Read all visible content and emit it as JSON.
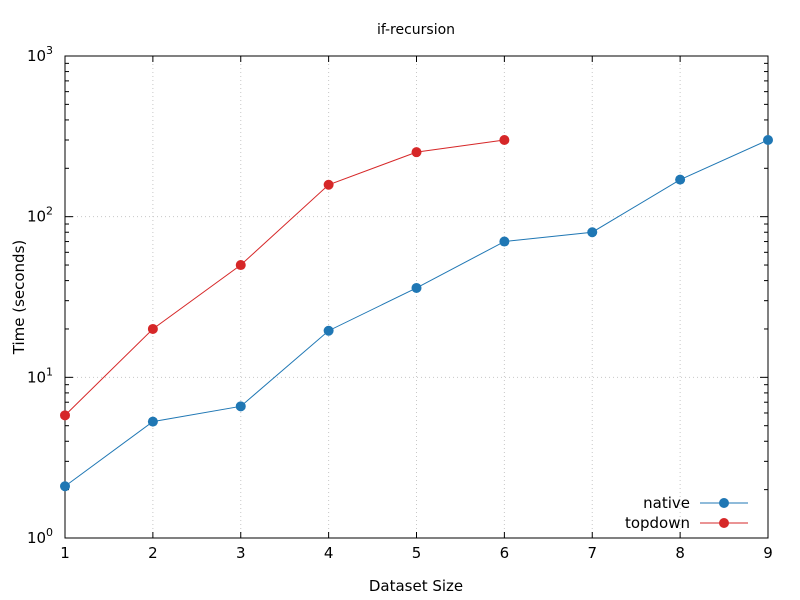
{
  "chart_data": {
    "type": "line",
    "title": "if-recursion",
    "xlabel": "Dataset Size",
    "ylabel": "Time (seconds)",
    "xlim": [
      1,
      9
    ],
    "ylim": [
      1,
      1000
    ],
    "yscale": "log",
    "x_ticks": [
      "1",
      "2",
      "3",
      "4",
      "5",
      "6",
      "7",
      "8",
      "9"
    ],
    "y_ticks": [
      {
        "base": "10",
        "exp": "0",
        "value": 1
      },
      {
        "base": "10",
        "exp": "1",
        "value": 10
      },
      {
        "base": "10",
        "exp": "2",
        "value": 100
      },
      {
        "base": "10",
        "exp": "3",
        "value": 1000
      }
    ],
    "grid": true,
    "legend": "bottom-right",
    "series": [
      {
        "name": "native",
        "color": "#1f77b4",
        "x": [
          1,
          2,
          3,
          4,
          5,
          6,
          7,
          8,
          9
        ],
        "y": [
          2.1,
          5.3,
          6.6,
          19.5,
          36,
          70,
          80,
          170,
          300
        ]
      },
      {
        "name": "topdown",
        "color": "#d62728",
        "x": [
          1,
          2,
          3,
          4,
          5,
          6
        ],
        "y": [
          5.8,
          20,
          50,
          158,
          252,
          300
        ]
      }
    ]
  }
}
